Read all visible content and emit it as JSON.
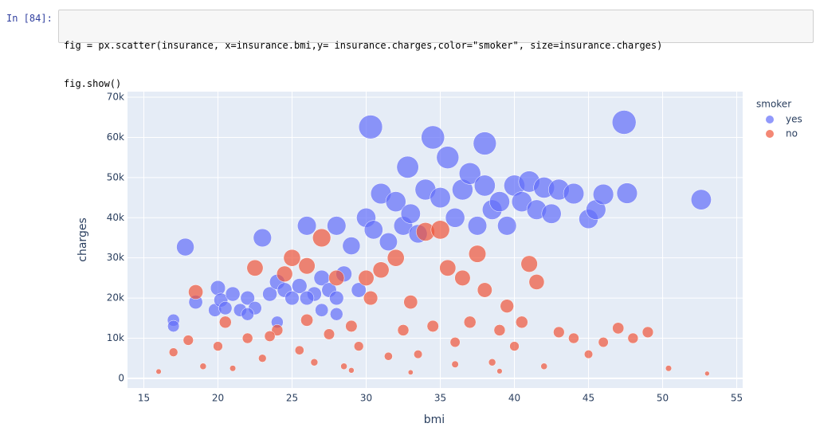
{
  "cell": {
    "prompt": "In [84]:",
    "code": [
      "fig = px.scatter(insurance, x=insurance.bmi,y= insurance.charges,color=\"smoker\", size=insurance.charges)",
      "fig.show()"
    ]
  },
  "chart_data": {
    "type": "scatter",
    "x_label": "bmi",
    "y_label": "charges",
    "legend_title": "smoker",
    "legend_position": "right",
    "grid": true,
    "xlim": [
      13.9,
      55.4
    ],
    "xticks": [
      15,
      20,
      25,
      30,
      35,
      40,
      45,
      50,
      55
    ],
    "ylim": [
      -2400,
      71400
    ],
    "yticks": [
      0,
      {
        "value": 10000,
        "label": "10k"
      },
      {
        "value": 20000,
        "label": "20k"
      },
      {
        "value": 30000,
        "label": "30k"
      },
      {
        "value": 40000,
        "label": "40k"
      },
      {
        "value": 50000,
        "label": "50k"
      },
      {
        "value": 60000,
        "label": "60k"
      },
      {
        "value": 70000,
        "label": "70k"
      }
    ],
    "series": [
      {
        "name": "yes",
        "color": "#636efa",
        "x": [
          17.8,
          18.5,
          17,
          17,
          19.8,
          20,
          20.2,
          20.5,
          21,
          21.5,
          22,
          22.5,
          23,
          23.5,
          24,
          24.5,
          25,
          25.5,
          26,
          26.5,
          27,
          27.5,
          28,
          28,
          28.5,
          29,
          29.5,
          30,
          30.3,
          30.5,
          31,
          31.5,
          32,
          32.5,
          32.8,
          33,
          33.5,
          34,
          34.5,
          35,
          35.5,
          36,
          36.5,
          37,
          37.5,
          38,
          38,
          38.5,
          39,
          39.5,
          40,
          40.5,
          41,
          41.5,
          42,
          42.5,
          43,
          44,
          45,
          45.5,
          46,
          47.4,
          47.6,
          52.6,
          26,
          27,
          28,
          24,
          22
        ],
        "values": [
          32700,
          19000,
          14500,
          13000,
          17000,
          22500,
          19500,
          17500,
          21000,
          17000,
          20000,
          17500,
          35000,
          21000,
          24000,
          22000,
          20000,
          23000,
          38000,
          21000,
          25000,
          22000,
          38000,
          20000,
          26000,
          33000,
          22000,
          40000,
          62600,
          37000,
          46000,
          34000,
          44000,
          38000,
          52600,
          41000,
          36000,
          47000,
          60000,
          45000,
          55000,
          40000,
          47000,
          51000,
          38000,
          58500,
          48000,
          42000,
          44000,
          38000,
          48000,
          44000,
          49000,
          42000,
          47500,
          41000,
          47000,
          46000,
          39700,
          42000,
          45800,
          63770,
          46100,
          44500,
          20000,
          17000,
          16000,
          14000,
          16000
        ]
      },
      {
        "name": "no",
        "color": "#EF553B",
        "x": [
          16,
          17,
          18,
          18.5,
          19,
          20,
          21,
          22,
          22.5,
          23,
          24,
          24.5,
          25,
          25.5,
          26,
          26.5,
          27,
          27.5,
          28,
          28.5,
          29,
          29.5,
          30,
          30.3,
          31,
          31.5,
          32,
          32.5,
          33,
          33.5,
          34,
          34.5,
          35,
          35.5,
          36,
          36.5,
          37,
          37.5,
          38,
          38.5,
          39,
          39.5,
          40,
          40.5,
          41,
          41.5,
          42,
          43,
          44,
          45,
          46,
          47,
          48,
          49,
          50.4,
          53,
          20.5,
          23.5,
          26,
          29,
          33,
          36,
          39
        ],
        "values": [
          1700,
          6500,
          9500,
          21500,
          3000,
          8000,
          2500,
          10000,
          27500,
          5000,
          12000,
          26000,
          30000,
          7000,
          28000,
          4000,
          35000,
          11000,
          25000,
          3000,
          13000,
          8000,
          25000,
          20000,
          27000,
          5500,
          30000,
          12000,
          19000,
          6000,
          36500,
          13000,
          37000,
          27500,
          9000,
          25000,
          14000,
          31000,
          22000,
          4000,
          12000,
          18000,
          8000,
          14000,
          28500,
          24000,
          3000,
          11500,
          10000,
          6000,
          9000,
          12500,
          10000,
          11500,
          2500,
          1200,
          14000,
          10500,
          14500,
          2000,
          1500,
          3500,
          1800
        ]
      }
    ]
  }
}
